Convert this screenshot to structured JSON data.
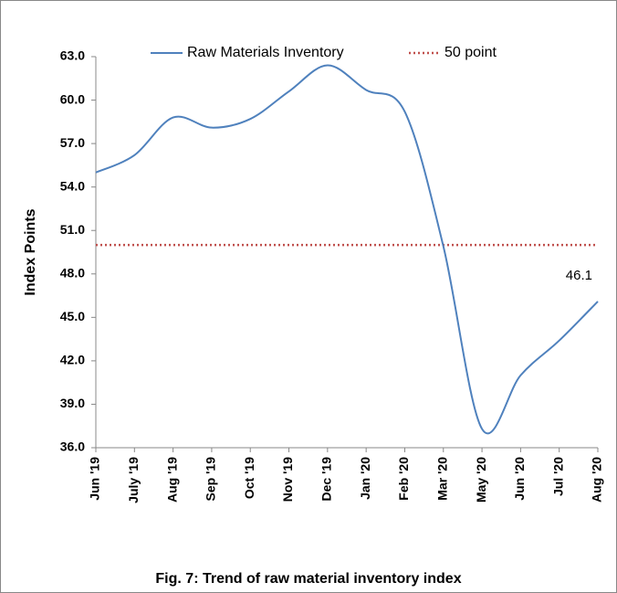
{
  "chart_data": {
    "type": "line",
    "title": "Fig. 7: Trend of raw material inventory index",
    "y_label": "Index Points",
    "categories": [
      "Jun '19",
      "July '19",
      "Aug '19",
      "Sep '19",
      "Oct '19",
      "Nov '19",
      "Dec '19",
      "Jan '20",
      "Feb '20",
      "Mar '20",
      "May '20",
      "Jun '20",
      "Jul '20",
      "Aug '20"
    ],
    "series": [
      {
        "name": "Raw Materials Inventory",
        "color": "#4f81bd",
        "values": [
          55.0,
          56.2,
          58.8,
          58.1,
          58.7,
          60.6,
          62.4,
          60.7,
          59.2,
          49.9,
          37.3,
          41.0,
          43.4,
          46.1
        ]
      }
    ],
    "reference_line": {
      "name": "50 point",
      "value": 50,
      "color": "#c0504d"
    },
    "ylim": [
      36,
      63
    ],
    "yticks": [
      {
        "value": 36,
        "label": "36.0"
      },
      {
        "value": 39,
        "label": "39.0"
      },
      {
        "value": 42,
        "label": "42.0"
      },
      {
        "value": 45,
        "label": "45.0"
      },
      {
        "value": 48,
        "label": "48.0"
      },
      {
        "value": 51,
        "label": "51.0"
      },
      {
        "value": 54,
        "label": "54.0"
      },
      {
        "value": 57,
        "label": "57.0"
      },
      {
        "value": 60,
        "label": "60.0"
      },
      {
        "value": 63,
        "label": "63.0"
      }
    ],
    "grid": false
  }
}
